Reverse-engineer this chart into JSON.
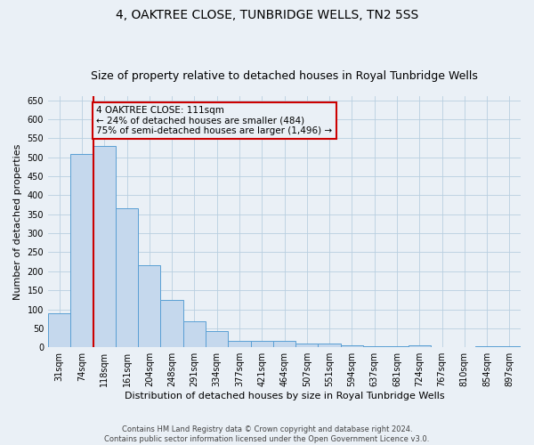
{
  "title": "4, OAKTREE CLOSE, TUNBRIDGE WELLS, TN2 5SS",
  "subtitle": "Size of property relative to detached houses in Royal Tunbridge Wells",
  "xlabel": "Distribution of detached houses by size in Royal Tunbridge Wells",
  "ylabel": "Number of detached properties",
  "footer_line1": "Contains HM Land Registry data © Crown copyright and database right 2024.",
  "footer_line2": "Contains public sector information licensed under the Open Government Licence v3.0.",
  "categories": [
    "31sqm",
    "74sqm",
    "118sqm",
    "161sqm",
    "204sqm",
    "248sqm",
    "291sqm",
    "334sqm",
    "377sqm",
    "421sqm",
    "464sqm",
    "507sqm",
    "551sqm",
    "594sqm",
    "637sqm",
    "681sqm",
    "724sqm",
    "767sqm",
    "810sqm",
    "854sqm",
    "897sqm"
  ],
  "values": [
    90,
    508,
    530,
    365,
    215,
    125,
    68,
    42,
    16,
    17,
    17,
    11,
    10,
    5,
    2,
    2,
    5,
    1,
    0,
    4,
    4
  ],
  "bar_color": "#c5d8ed",
  "bar_edge_color": "#5a9fd4",
  "highlight_bar_index": 1,
  "highlight_color": "#cc0000",
  "annotation_title": "4 OAKTREE CLOSE: 111sqm",
  "annotation_line1": "← 24% of detached houses are smaller (484)",
  "annotation_line2": "75% of semi-detached houses are larger (1,496) →",
  "ylim": [
    0,
    660
  ],
  "yticks": [
    0,
    50,
    100,
    150,
    200,
    250,
    300,
    350,
    400,
    450,
    500,
    550,
    600,
    650
  ],
  "grid_color": "#b8cfe0",
  "background_color": "#eaf0f6",
  "title_fontsize": 10,
  "subtitle_fontsize": 9,
  "axis_label_fontsize": 8,
  "tick_fontsize": 7,
  "footer_fontsize": 6,
  "annotation_fontsize": 7.5
}
